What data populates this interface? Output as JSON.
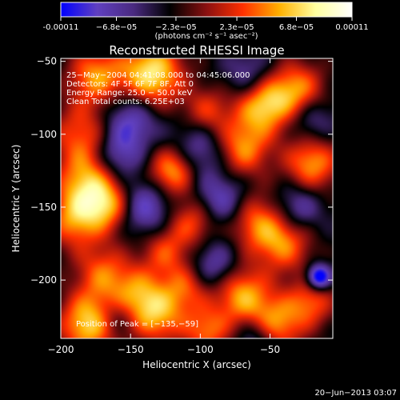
{
  "chart_data": {
    "type": "heatmap",
    "title": "Reconstructed RHESSI Image",
    "xlabel": "Heliocentric X (arcsec)",
    "ylabel": "Heliocentric Y (arcsec)",
    "xlim": [
      -200,
      -5
    ],
    "ylim": [
      -240,
      -48
    ],
    "x_ticks": [
      "−200",
      "−150",
      "−100",
      "−50"
    ],
    "x_tick_values": [
      -200,
      -150,
      -100,
      -50
    ],
    "y_ticks": [
      "−50",
      "−100",
      "−150",
      "−200"
    ],
    "y_tick_values": [
      -50,
      -100,
      -150,
      -200
    ],
    "colorbar": {
      "range": [
        -0.00011,
        0.00011
      ],
      "tick_labels": [
        "-0.00011",
        "−6.8e−05",
        "−2.3e−05",
        "2.3e−05",
        "6.8e−05",
        "0.00011"
      ],
      "tick_values": [
        -0.00011,
        -6.8e-05,
        -2.3e-05,
        2.3e-05,
        6.8e-05,
        0.00011
      ],
      "unit_label": "(photons cm⁻² s⁻¹ asec⁻²)",
      "colormap": [
        "#0000ff",
        "#6040c0",
        "#4a2a80",
        "#000000",
        "#8a1010",
        "#ff3000",
        "#ffb000",
        "#ffffa0",
        "#ffffff"
      ]
    },
    "annotations": [
      "25−May−2004 04:41:08.000 to 04:45:06.000",
      "Detectors: 4F 5F 6F 7F 8F, Att 0",
      "Energy Range: 25.0 − 50.0 keV",
      "Clean     Total counts: 6.25E+03"
    ],
    "peak_label": "Position of Peak = [−135,−59]",
    "peak": [
      -135,
      -59
    ],
    "blobs": [
      {
        "x": -135,
        "y": -59,
        "v": 1.0,
        "s": 16
      },
      {
        "x": -175,
        "y": -60,
        "v": 0.7,
        "s": 14
      },
      {
        "x": -185,
        "y": -100,
        "v": 0.55,
        "s": 16
      },
      {
        "x": -180,
        "y": -135,
        "v": 0.8,
        "s": 16
      },
      {
        "x": -190,
        "y": -160,
        "v": 0.6,
        "s": 14
      },
      {
        "x": -165,
        "y": -150,
        "v": 0.55,
        "s": 12
      },
      {
        "x": -170,
        "y": -195,
        "v": 0.55,
        "s": 14
      },
      {
        "x": -145,
        "y": -210,
        "v": 0.6,
        "s": 14
      },
      {
        "x": -180,
        "y": -230,
        "v": 0.9,
        "s": 15
      },
      {
        "x": -130,
        "y": -225,
        "v": 0.65,
        "s": 14
      },
      {
        "x": -120,
        "y": -125,
        "v": 0.8,
        "s": 12
      },
      {
        "x": -105,
        "y": -160,
        "v": 0.55,
        "s": 12
      },
      {
        "x": -125,
        "y": -180,
        "v": 0.5,
        "s": 12
      },
      {
        "x": -95,
        "y": -85,
        "v": 0.5,
        "s": 12
      },
      {
        "x": -70,
        "y": -110,
        "v": 0.7,
        "s": 14
      },
      {
        "x": -55,
        "y": -80,
        "v": 0.85,
        "s": 14
      },
      {
        "x": -30,
        "y": -70,
        "v": 0.7,
        "s": 14
      },
      {
        "x": -20,
        "y": -120,
        "v": 0.75,
        "s": 14
      },
      {
        "x": -60,
        "y": -160,
        "v": 0.6,
        "s": 14
      },
      {
        "x": -40,
        "y": -175,
        "v": 0.65,
        "s": 14
      },
      {
        "x": -70,
        "y": -210,
        "v": 0.75,
        "s": 14
      },
      {
        "x": -45,
        "y": -230,
        "v": 0.7,
        "s": 14
      },
      {
        "x": -95,
        "y": -235,
        "v": 0.6,
        "s": 12
      },
      {
        "x": -110,
        "y": -205,
        "v": 0.5,
        "s": 12
      },
      {
        "x": -20,
        "y": -215,
        "v": 0.55,
        "s": 12
      },
      {
        "x": -150,
        "y": -90,
        "v": -0.55,
        "s": 14
      },
      {
        "x": -160,
        "y": -115,
        "v": -0.5,
        "s": 12
      },
      {
        "x": -140,
        "y": -150,
        "v": -0.55,
        "s": 13
      },
      {
        "x": -100,
        "y": -110,
        "v": -0.45,
        "s": 14
      },
      {
        "x": -85,
        "y": -145,
        "v": -0.5,
        "s": 13
      },
      {
        "x": -65,
        "y": -60,
        "v": -0.4,
        "s": 12
      },
      {
        "x": -20,
        "y": -90,
        "v": -0.4,
        "s": 12
      },
      {
        "x": -30,
        "y": -150,
        "v": -0.45,
        "s": 12
      },
      {
        "x": -90,
        "y": -190,
        "v": -0.45,
        "s": 12
      },
      {
        "x": -15,
        "y": -198,
        "v": -1.0,
        "s": 6
      },
      {
        "x": -160,
        "y": -225,
        "v": -0.35,
        "s": 10
      },
      {
        "x": -60,
        "y": -240,
        "v": -0.4,
        "s": 10
      }
    ]
  },
  "footer": {
    "timestamp": "20−Jun−2013 03:07"
  }
}
